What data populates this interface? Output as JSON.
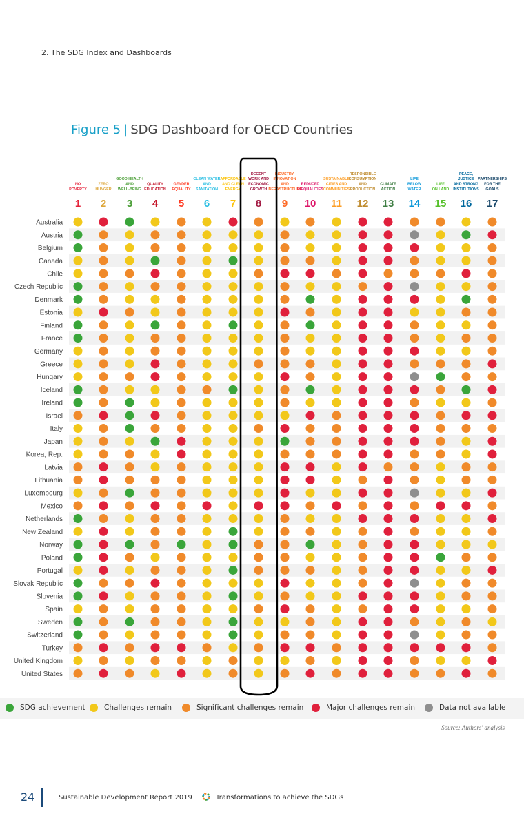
{
  "page": {
    "section": "2. The SDG Index and Dashboards",
    "figure_label": "Figure 5",
    "figure_separator": "|",
    "figure_title": "SDG Dashboard for OECD Countries",
    "source": "Source: Authors' analysis",
    "page_number": "24",
    "report_name": "Sustainable Development Report 2019",
    "report_subtitle": "Transformations to achieve the SDGs"
  },
  "colors": {
    "G": "#3aa53a",
    "Y": "#f2c81a",
    "O": "#f08a2a",
    "R": "#e0203c",
    "N": "#8e8e8e"
  },
  "legend": [
    {
      "code": "G",
      "label": "SDG achievement"
    },
    {
      "code": "Y",
      "label": "Challenges remain"
    },
    {
      "code": "O",
      "label": "Significant challenges remain"
    },
    {
      "code": "R",
      "label": "Major challenges remain"
    },
    {
      "code": "N",
      "label": "Data not available"
    }
  ],
  "chart_data": {
    "type": "table",
    "goals": [
      {
        "number": "1",
        "label": [
          "NO",
          "POVERTY"
        ],
        "color": "#e5243b"
      },
      {
        "number": "2",
        "label": [
          "ZERO",
          "HUNGER"
        ],
        "color": "#dda63a"
      },
      {
        "number": "3",
        "label": [
          "GOOD HEALTH",
          "AND",
          "WELL-BEING"
        ],
        "color": "#4c9f38"
      },
      {
        "number": "4",
        "label": [
          "QUALITY",
          "EDUCATION"
        ],
        "color": "#c5192d"
      },
      {
        "number": "5",
        "label": [
          "GENDER",
          "EQUALITY"
        ],
        "color": "#ff3a21"
      },
      {
        "number": "6",
        "label": [
          "CLEAN WATER",
          "AND",
          "SANITATION"
        ],
        "color": "#26bde2"
      },
      {
        "number": "7",
        "label": [
          "AFFORDABLE",
          "AND CLEAN",
          "ENERGY"
        ],
        "color": "#fcc30b"
      },
      {
        "number": "8",
        "label": [
          "DECENT",
          "WORK AND",
          "ECONOMIC",
          "GROWTH"
        ],
        "color": "#a21942"
      },
      {
        "number": "9",
        "label": [
          "INDUSTRY,",
          "INNOVATION",
          "AND",
          "INFRASTRUCTURE"
        ],
        "color": "#fd6925"
      },
      {
        "number": "10",
        "label": [
          "REDUCED",
          "INEQUALITIES"
        ],
        "color": "#dd1367"
      },
      {
        "number": "11",
        "label": [
          "SUSTAINABLE",
          "CITIES AND",
          "COMMUNITIES"
        ],
        "color": "#fd9d24"
      },
      {
        "number": "12",
        "label": [
          "RESPONSIBLE",
          "CONSUMPTION",
          "AND",
          "PRODUCTION"
        ],
        "color": "#bf8b2e"
      },
      {
        "number": "13",
        "label": [
          "CLIMATE",
          "ACTION"
        ],
        "color": "#3f7e44"
      },
      {
        "number": "14",
        "label": [
          "LIFE",
          "BELOW",
          "WATER"
        ],
        "color": "#0a97d9"
      },
      {
        "number": "15",
        "label": [
          "LIFE",
          "ON LAND"
        ],
        "color": "#56c02b"
      },
      {
        "number": "16",
        "label": [
          "PEACE,",
          "JUSTICE",
          "AND STRONG",
          "INSTITUTIONS"
        ],
        "color": "#00689d"
      },
      {
        "number": "17",
        "label": [
          "PARTNERSHIPS",
          "FOR THE",
          "GOALS"
        ],
        "color": "#19486a"
      }
    ],
    "highlighted_goal": "8",
    "countries": [
      {
        "name": "Australia",
        "status": [
          "Y",
          "R",
          "G",
          "Y",
          "O",
          "Y",
          "R",
          "O",
          "Y",
          "O",
          "Y",
          "R",
          "R",
          "O",
          "O",
          "Y",
          "O"
        ]
      },
      {
        "name": "Austria",
        "status": [
          "G",
          "O",
          "Y",
          "O",
          "O",
          "Y",
          "Y",
          "Y",
          "O",
          "Y",
          "Y",
          "R",
          "R",
          "N",
          "Y",
          "G",
          "R"
        ]
      },
      {
        "name": "Belgium",
        "status": [
          "G",
          "O",
          "Y",
          "O",
          "O",
          "Y",
          "Y",
          "Y",
          "O",
          "Y",
          "Y",
          "R",
          "R",
          "R",
          "Y",
          "Y",
          "O"
        ]
      },
      {
        "name": "Canada",
        "status": [
          "Y",
          "O",
          "Y",
          "G",
          "O",
          "Y",
          "G",
          "Y",
          "O",
          "O",
          "Y",
          "R",
          "R",
          "O",
          "Y",
          "Y",
          "O"
        ]
      },
      {
        "name": "Chile",
        "status": [
          "Y",
          "O",
          "O",
          "R",
          "O",
          "Y",
          "Y",
          "O",
          "R",
          "R",
          "O",
          "R",
          "O",
          "O",
          "O",
          "R",
          "O"
        ]
      },
      {
        "name": "Czech Republic",
        "status": [
          "G",
          "O",
          "Y",
          "O",
          "O",
          "Y",
          "Y",
          "Y",
          "O",
          "Y",
          "Y",
          "O",
          "R",
          "N",
          "Y",
          "Y",
          "O"
        ]
      },
      {
        "name": "Denmark",
        "status": [
          "G",
          "O",
          "Y",
          "Y",
          "O",
          "Y",
          "Y",
          "Y",
          "O",
          "G",
          "Y",
          "R",
          "R",
          "R",
          "Y",
          "G",
          "O"
        ]
      },
      {
        "name": "Estonia",
        "status": [
          "Y",
          "R",
          "O",
          "Y",
          "O",
          "Y",
          "Y",
          "Y",
          "R",
          "O",
          "Y",
          "R",
          "R",
          "Y",
          "Y",
          "O",
          "O"
        ]
      },
      {
        "name": "Finland",
        "status": [
          "G",
          "O",
          "Y",
          "G",
          "O",
          "Y",
          "G",
          "Y",
          "O",
          "G",
          "Y",
          "R",
          "R",
          "O",
          "Y",
          "Y",
          "O"
        ]
      },
      {
        "name": "France",
        "status": [
          "G",
          "O",
          "Y",
          "O",
          "O",
          "Y",
          "Y",
          "Y",
          "O",
          "Y",
          "Y",
          "R",
          "R",
          "O",
          "Y",
          "O",
          "O"
        ]
      },
      {
        "name": "Germany",
        "status": [
          "Y",
          "O",
          "Y",
          "O",
          "O",
          "Y",
          "Y",
          "Y",
          "O",
          "Y",
          "Y",
          "R",
          "R",
          "R",
          "Y",
          "Y",
          "O"
        ]
      },
      {
        "name": "Greece",
        "status": [
          "Y",
          "O",
          "Y",
          "R",
          "O",
          "Y",
          "Y",
          "O",
          "O",
          "O",
          "Y",
          "R",
          "R",
          "O",
          "O",
          "O",
          "R"
        ]
      },
      {
        "name": "Hungary",
        "status": [
          "Y",
          "O",
          "O",
          "R",
          "O",
          "Y",
          "Y",
          "Y",
          "R",
          "O",
          "Y",
          "R",
          "R",
          "N",
          "G",
          "O",
          "O"
        ]
      },
      {
        "name": "Iceland",
        "status": [
          "G",
          "O",
          "Y",
          "Y",
          "O",
          "O",
          "G",
          "Y",
          "O",
          "G",
          "Y",
          "R",
          "R",
          "R",
          "O",
          "G",
          "R"
        ]
      },
      {
        "name": "Ireland",
        "status": [
          "G",
          "O",
          "G",
          "Y",
          "O",
          "Y",
          "Y",
          "Y",
          "O",
          "Y",
          "Y",
          "R",
          "R",
          "O",
          "Y",
          "Y",
          "O"
        ]
      },
      {
        "name": "Israel",
        "status": [
          "O",
          "R",
          "G",
          "R",
          "O",
          "Y",
          "Y",
          "Y",
          "Y",
          "R",
          "O",
          "R",
          "R",
          "R",
          "O",
          "R",
          "R"
        ]
      },
      {
        "name": "Italy",
        "status": [
          "Y",
          "O",
          "G",
          "O",
          "O",
          "Y",
          "Y",
          "O",
          "R",
          "O",
          "O",
          "R",
          "R",
          "R",
          "O",
          "O",
          "O"
        ]
      },
      {
        "name": "Japan",
        "status": [
          "Y",
          "O",
          "Y",
          "G",
          "R",
          "Y",
          "Y",
          "Y",
          "G",
          "O",
          "O",
          "R",
          "R",
          "R",
          "O",
          "Y",
          "R"
        ]
      },
      {
        "name": "Korea, Rep.",
        "status": [
          "Y",
          "O",
          "O",
          "Y",
          "R",
          "Y",
          "Y",
          "Y",
          "O",
          "O",
          "O",
          "R",
          "R",
          "O",
          "O",
          "Y",
          "R"
        ]
      },
      {
        "name": "Latvia",
        "status": [
          "O",
          "R",
          "O",
          "Y",
          "O",
          "Y",
          "Y",
          "Y",
          "R",
          "R",
          "Y",
          "R",
          "O",
          "O",
          "Y",
          "O",
          "O"
        ]
      },
      {
        "name": "Lithuania",
        "status": [
          "O",
          "R",
          "O",
          "O",
          "O",
          "Y",
          "Y",
          "Y",
          "R",
          "R",
          "Y",
          "O",
          "R",
          "O",
          "Y",
          "O",
          "O"
        ]
      },
      {
        "name": "Luxembourg",
        "status": [
          "Y",
          "O",
          "G",
          "O",
          "O",
          "Y",
          "Y",
          "Y",
          "R",
          "Y",
          "Y",
          "R",
          "R",
          "N",
          "Y",
          "Y",
          "R"
        ]
      },
      {
        "name": "Mexico",
        "status": [
          "O",
          "R",
          "O",
          "R",
          "O",
          "R",
          "Y",
          "R",
          "R",
          "O",
          "R",
          "O",
          "R",
          "O",
          "R",
          "R",
          "O"
        ]
      },
      {
        "name": "Netherlands",
        "status": [
          "G",
          "O",
          "Y",
          "O",
          "O",
          "Y",
          "Y",
          "Y",
          "O",
          "Y",
          "Y",
          "R",
          "R",
          "R",
          "Y",
          "Y",
          "R"
        ]
      },
      {
        "name": "New Zealand",
        "status": [
          "Y",
          "R",
          "Y",
          "O",
          "O",
          "Y",
          "G",
          "Y",
          "O",
          "O",
          "Y",
          "O",
          "R",
          "O",
          "Y",
          "Y",
          "O"
        ]
      },
      {
        "name": "Norway",
        "status": [
          "G",
          "R",
          "G",
          "O",
          "G",
          "Y",
          "G",
          "O",
          "O",
          "G",
          "Y",
          "O",
          "R",
          "R",
          "Y",
          "Y",
          "Y"
        ]
      },
      {
        "name": "Poland",
        "status": [
          "G",
          "R",
          "O",
          "Y",
          "O",
          "Y",
          "Y",
          "O",
          "O",
          "Y",
          "Y",
          "O",
          "R",
          "R",
          "G",
          "O",
          "O"
        ]
      },
      {
        "name": "Portugal",
        "status": [
          "Y",
          "R",
          "Y",
          "O",
          "O",
          "Y",
          "G",
          "O",
          "O",
          "O",
          "Y",
          "O",
          "R",
          "R",
          "Y",
          "Y",
          "R"
        ]
      },
      {
        "name": "Slovak Republic",
        "status": [
          "G",
          "O",
          "O",
          "R",
          "O",
          "Y",
          "Y",
          "Y",
          "R",
          "Y",
          "Y",
          "O",
          "R",
          "N",
          "Y",
          "O",
          "O"
        ]
      },
      {
        "name": "Slovenia",
        "status": [
          "G",
          "R",
          "Y",
          "O",
          "O",
          "Y",
          "G",
          "Y",
          "O",
          "Y",
          "Y",
          "R",
          "R",
          "R",
          "Y",
          "O",
          "O"
        ]
      },
      {
        "name": "Spain",
        "status": [
          "Y",
          "O",
          "Y",
          "O",
          "O",
          "Y",
          "Y",
          "O",
          "R",
          "O",
          "Y",
          "O",
          "R",
          "R",
          "Y",
          "Y",
          "O"
        ]
      },
      {
        "name": "Sweden",
        "status": [
          "G",
          "O",
          "G",
          "O",
          "O",
          "Y",
          "G",
          "Y",
          "Y",
          "O",
          "Y",
          "R",
          "R",
          "O",
          "Y",
          "O",
          "Y"
        ]
      },
      {
        "name": "Switzerland",
        "status": [
          "G",
          "O",
          "Y",
          "O",
          "O",
          "Y",
          "G",
          "Y",
          "O",
          "O",
          "Y",
          "R",
          "R",
          "N",
          "Y",
          "O",
          "O"
        ]
      },
      {
        "name": "Turkey",
        "status": [
          "O",
          "R",
          "O",
          "R",
          "R",
          "O",
          "Y",
          "O",
          "R",
          "R",
          "O",
          "R",
          "R",
          "R",
          "R",
          "R",
          "O"
        ]
      },
      {
        "name": "United Kingdom",
        "status": [
          "Y",
          "O",
          "Y",
          "O",
          "O",
          "Y",
          "O",
          "Y",
          "Y",
          "O",
          "Y",
          "R",
          "R",
          "O",
          "Y",
          "Y",
          "R"
        ]
      },
      {
        "name": "United States",
        "status": [
          "O",
          "R",
          "O",
          "Y",
          "R",
          "Y",
          "O",
          "Y",
          "O",
          "R",
          "O",
          "R",
          "R",
          "O",
          "O",
          "R",
          "O"
        ]
      }
    ]
  }
}
